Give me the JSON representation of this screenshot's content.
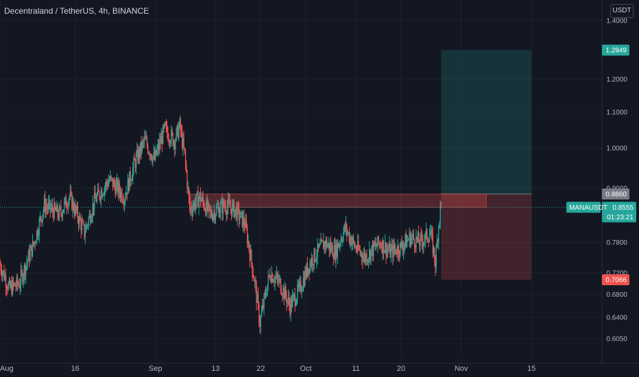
{
  "header": {
    "title": "Decentraland / TetherUS, 4h, BINANCE",
    "currency": "USDT"
  },
  "colors": {
    "background": "#131722",
    "up": "#26a69a",
    "down": "#ef5350",
    "grid": "#1e222d",
    "axis_text": "#b2b5be"
  },
  "price_axis": {
    "ticks": [
      "1.4000",
      "1.2000",
      "1.1000",
      "1.0000",
      "0.9000",
      "0.7800",
      "0.7200",
      "0.6800",
      "0.6400",
      "0.6050"
    ]
  },
  "time_axis": {
    "labels": [
      "Aug",
      "16",
      "Sep",
      "13",
      "22",
      "Oct",
      "11",
      "20",
      "Nov",
      "15"
    ]
  },
  "markers": {
    "target_price": "1.2949",
    "entry_price": "0.8860",
    "symbol": "MANAUSDT",
    "last_price": "0.8555",
    "countdown": "01:23:21",
    "stop_price": "0.7066"
  },
  "chart_data": {
    "type": "candlestick",
    "title": "Decentraland / TetherUS, 4h, BINANCE",
    "y_scale": "log",
    "ylim": [
      0.58,
      1.45
    ],
    "x_start": "2021-08-01",
    "x_end": "2021-11-21",
    "last_candle": "2021-10-28",
    "price_path": [
      [
        "2021-08-01",
        0.74
      ],
      [
        "2021-08-03",
        0.69
      ],
      [
        "2021-08-05",
        0.7
      ],
      [
        "2021-08-08",
        0.78
      ],
      [
        "2021-08-10",
        0.86
      ],
      [
        "2021-08-13",
        0.84
      ],
      [
        "2021-08-15",
        0.88
      ],
      [
        "2021-08-18",
        0.8
      ],
      [
        "2021-08-20",
        0.87
      ],
      [
        "2021-08-23",
        0.92
      ],
      [
        "2021-08-26",
        0.88
      ],
      [
        "2021-08-28",
        0.96
      ],
      [
        "2021-08-30",
        1.02
      ],
      [
        "2021-09-01",
        0.97
      ],
      [
        "2021-09-03",
        1.05
      ],
      [
        "2021-09-05",
        1.02
      ],
      [
        "2021-09-06",
        1.06
      ],
      [
        "2021-09-07",
        0.98
      ],
      [
        "2021-09-08",
        0.85
      ],
      [
        "2021-09-10",
        0.88
      ],
      [
        "2021-09-12",
        0.84
      ],
      [
        "2021-09-15",
        0.86
      ],
      [
        "2021-09-17",
        0.85
      ],
      [
        "2021-09-19",
        0.82
      ],
      [
        "2021-09-21",
        0.7
      ],
      [
        "2021-09-22",
        0.63
      ],
      [
        "2021-09-24",
        0.72
      ],
      [
        "2021-09-26",
        0.7
      ],
      [
        "2021-09-28",
        0.66
      ],
      [
        "2021-09-30",
        0.69
      ],
      [
        "2021-10-02",
        0.74
      ],
      [
        "2021-10-05",
        0.78
      ],
      [
        "2021-10-07",
        0.76
      ],
      [
        "2021-10-09",
        0.81
      ],
      [
        "2021-10-11",
        0.77
      ],
      [
        "2021-10-13",
        0.75
      ],
      [
        "2021-10-16",
        0.78
      ],
      [
        "2021-10-18",
        0.76
      ],
      [
        "2021-10-20",
        0.77
      ],
      [
        "2021-10-22",
        0.79
      ],
      [
        "2021-10-24",
        0.78
      ],
      [
        "2021-10-26",
        0.8
      ],
      [
        "2021-10-27",
        0.74
      ],
      [
        "2021-10-28",
        0.8555
      ]
    ],
    "positions": [
      {
        "name": "long position",
        "entry": 0.886,
        "target": 1.2949,
        "stop": 0.7066,
        "start": "2021-10-28",
        "end": "2021-11-15"
      }
    ],
    "resistance_zone": {
      "low": 0.8555,
      "high": 0.886,
      "start": "2021-09-08",
      "end": "2021-11-06"
    },
    "last_price": 0.8555,
    "ylabel": "USDT"
  }
}
